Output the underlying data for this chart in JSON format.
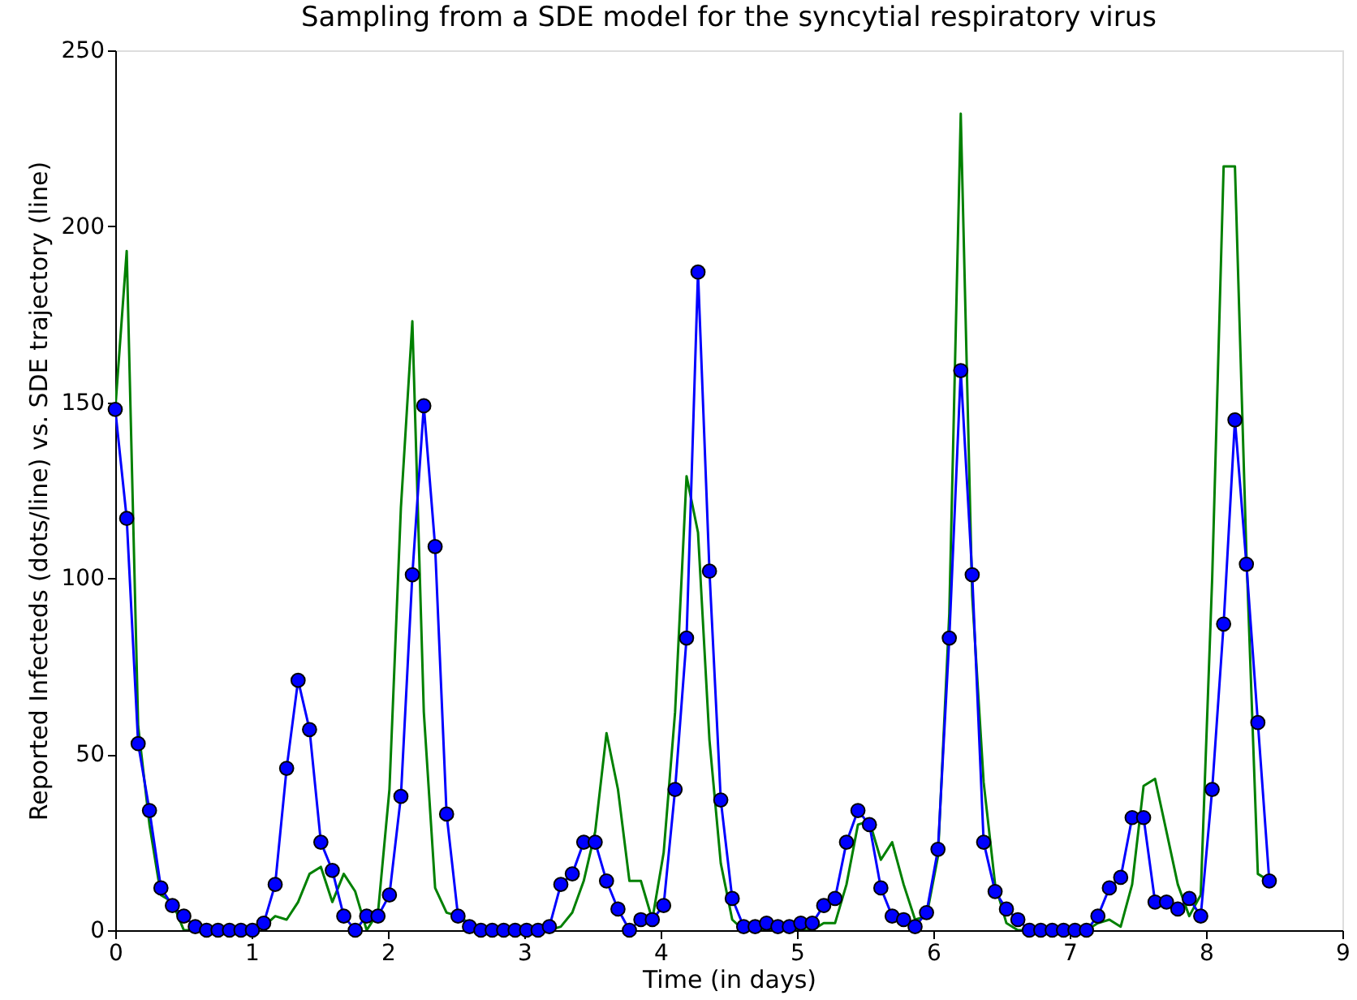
{
  "chart_data": {
    "type": "line",
    "title": "Sampling from a SDE model for the syncytial respiratory virus",
    "xlabel": "Time (in days)",
    "ylabel": "Reported Infecteds (dots/line) vs. SDE trajectory (line)",
    "xlim": [
      0,
      9
    ],
    "xticks": [
      0,
      1,
      2,
      3,
      4,
      5,
      6,
      7,
      8,
      9
    ],
    "ylim": [
      0,
      250
    ],
    "yticks": [
      0,
      50,
      100,
      150,
      200,
      250
    ],
    "grid": false,
    "legend": false,
    "x": [
      0,
      0.084,
      0.168,
      0.251,
      0.335,
      0.419,
      0.503,
      0.587,
      0.67,
      0.754,
      0.838,
      0.922,
      1.006,
      1.089,
      1.173,
      1.257,
      1.341,
      1.425,
      1.508,
      1.592,
      1.676,
      1.76,
      1.844,
      1.927,
      2.011,
      2.095,
      2.179,
      2.263,
      2.346,
      2.43,
      2.514,
      2.598,
      2.682,
      2.765,
      2.849,
      2.933,
      3.017,
      3.101,
      3.184,
      3.268,
      3.352,
      3.436,
      3.52,
      3.603,
      3.687,
      3.771,
      3.855,
      3.939,
      4.022,
      4.106,
      4.19,
      4.274,
      4.358,
      4.441,
      4.525,
      4.609,
      4.693,
      4.777,
      4.86,
      4.944,
      5.028,
      5.112,
      5.196,
      5.279,
      5.363,
      5.447,
      5.531,
      5.615,
      5.698,
      5.782,
      5.866,
      5.95,
      6.034,
      6.117,
      6.201,
      6.285,
      6.369,
      6.453,
      6.536,
      6.62,
      6.704,
      6.788,
      6.872,
      6.955,
      7.039,
      7.123,
      7.207,
      7.291,
      7.374,
      7.458,
      7.542,
      7.626,
      7.71,
      7.793,
      7.877,
      7.961,
      8.045,
      8.129,
      8.212,
      8.296,
      8.38,
      8.464
    ],
    "series": [
      {
        "color": "#008000",
        "marker": "none",
        "values": [
          148,
          193,
          58,
          30,
          10,
          8,
          0,
          0,
          0,
          0,
          0,
          0,
          0,
          1,
          4,
          3,
          8,
          16,
          18,
          8,
          16,
          11,
          0,
          5,
          40,
          120,
          173,
          62,
          12,
          5,
          4,
          2,
          0,
          0,
          0,
          0,
          0,
          0,
          0,
          1,
          5,
          14,
          28,
          56,
          40,
          14,
          14,
          3,
          22,
          62,
          129,
          113,
          54,
          19,
          3,
          0,
          0,
          0,
          0,
          0,
          0,
          0,
          2,
          2,
          13,
          30,
          31,
          20,
          25,
          13,
          3,
          4,
          21,
          90,
          232,
          95,
          42,
          13,
          2,
          0,
          0,
          0,
          0,
          0,
          0,
          0,
          2,
          3,
          1,
          13,
          41,
          43,
          28,
          13,
          4,
          10,
          100,
          217,
          217,
          107,
          16,
          14
        ]
      },
      {
        "color": "#0000ff",
        "marker": "circle",
        "values": [
          148,
          117,
          53,
          34,
          12,
          7,
          4,
          1,
          0,
          0,
          0,
          0,
          0,
          2,
          13,
          46,
          71,
          57,
          25,
          17,
          4,
          0,
          4,
          4,
          10,
          38,
          101,
          149,
          109,
          33,
          4,
          1,
          0,
          0,
          0,
          0,
          0,
          0,
          1,
          13,
          16,
          25,
          25,
          14,
          6,
          0,
          3,
          3,
          7,
          40,
          83,
          187,
          102,
          37,
          9,
          1,
          1,
          2,
          1,
          1,
          2,
          2,
          7,
          9,
          25,
          34,
          30,
          12,
          4,
          3,
          1,
          5,
          23,
          83,
          159,
          101,
          25,
          11,
          6,
          3,
          0,
          0,
          0,
          0,
          0,
          0,
          4,
          12,
          15,
          32,
          32,
          8,
          8,
          6,
          9,
          4,
          40,
          87,
          145,
          104,
          59,
          14
        ]
      }
    ]
  }
}
